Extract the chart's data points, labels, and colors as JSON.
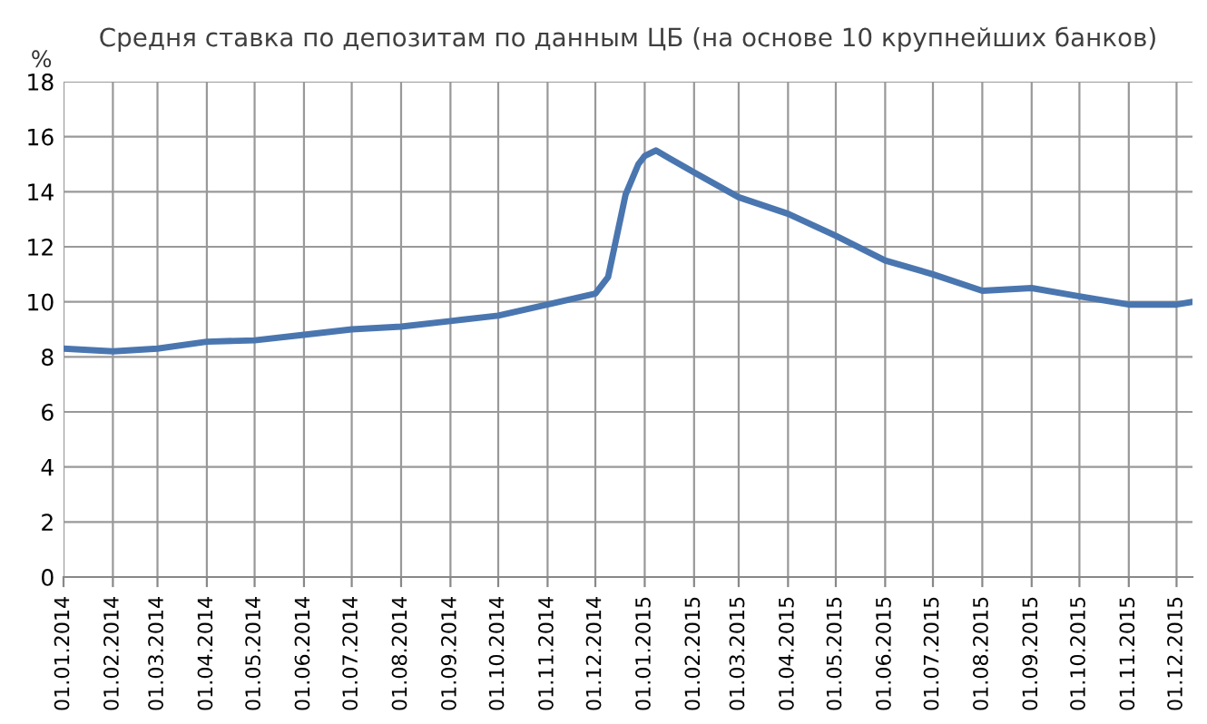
{
  "chart_data": {
    "type": "line",
    "title": "Средня ставка по депозитам по данным ЦБ (на основе 10 крупнейших банков)",
    "ylabel": "%",
    "x": [
      "2014-01-01",
      "2014-02-01",
      "2014-03-01",
      "2014-04-01",
      "2014-05-01",
      "2014-06-01",
      "2014-07-01",
      "2014-08-01",
      "2014-09-01",
      "2014-10-01",
      "2014-11-01",
      "2014-12-01",
      "2014-12-09",
      "2014-12-20",
      "2014-12-28",
      "2015-01-01",
      "2015-01-08",
      "2015-01-17",
      "2015-02-01",
      "2015-03-01",
      "2015-04-01",
      "2015-05-01",
      "2015-06-01",
      "2015-07-01",
      "2015-08-01",
      "2015-09-01",
      "2015-10-01",
      "2015-11-01",
      "2015-12-01",
      "2015-12-11"
    ],
    "series": [
      {
        "color": "#4a76b0",
        "values": [
          8.3,
          8.2,
          8.3,
          8.55,
          8.6,
          8.8,
          9.0,
          9.1,
          9.3,
          9.5,
          9.9,
          10.3,
          10.9,
          13.9,
          15.0,
          15.3,
          15.5,
          15.2,
          14.7,
          13.8,
          13.2,
          12.4,
          11.5,
          11.0,
          10.4,
          10.5,
          10.2,
          9.9,
          9.9,
          10.0
        ]
      }
    ],
    "xlim": [
      "2014-01-01",
      "2015-12-11"
    ],
    "xticks": [
      {
        "value": "2014-01-01",
        "label": "01.01.2014"
      },
      {
        "value": "2014-02-01",
        "label": "01.02.2014"
      },
      {
        "value": "2014-03-01",
        "label": "01.03.2014"
      },
      {
        "value": "2014-04-01",
        "label": "01.04.2014"
      },
      {
        "value": "2014-05-01",
        "label": "01.05.2014"
      },
      {
        "value": "2014-06-01",
        "label": "01.06.2014"
      },
      {
        "value": "2014-07-01",
        "label": "01.07.2014"
      },
      {
        "value": "2014-08-01",
        "label": "01.08.2014"
      },
      {
        "value": "2014-09-01",
        "label": "01.09.2014"
      },
      {
        "value": "2014-10-01",
        "label": "01.10.2014"
      },
      {
        "value": "2014-11-01",
        "label": "01.11.2014"
      },
      {
        "value": "2014-12-01",
        "label": "01.12.2014"
      },
      {
        "value": "2015-01-01",
        "label": "01.01.2015"
      },
      {
        "value": "2015-02-01",
        "label": "01.02.2015"
      },
      {
        "value": "2015-03-01",
        "label": "01.03.2015"
      },
      {
        "value": "2015-04-01",
        "label": "01.04.2015"
      },
      {
        "value": "2015-05-01",
        "label": "01.05.2015"
      },
      {
        "value": "2015-06-01",
        "label": "01.06.2015"
      },
      {
        "value": "2015-07-01",
        "label": "01.07.2015"
      },
      {
        "value": "2015-08-01",
        "label": "01.08.2015"
      },
      {
        "value": "2015-09-01",
        "label": "01.09.2015"
      },
      {
        "value": "2015-10-01",
        "label": "01.10.2015"
      },
      {
        "value": "2015-11-01",
        "label": "01.11.2015"
      },
      {
        "value": "2015-12-01",
        "label": "01.12.2015"
      }
    ],
    "ylim": [
      0,
      18
    ],
    "yticks": [
      0,
      2,
      4,
      6,
      8,
      10,
      12,
      14,
      16,
      18
    ],
    "grid": true,
    "legend": false,
    "marker": "none",
    "line_style": "solid"
  }
}
